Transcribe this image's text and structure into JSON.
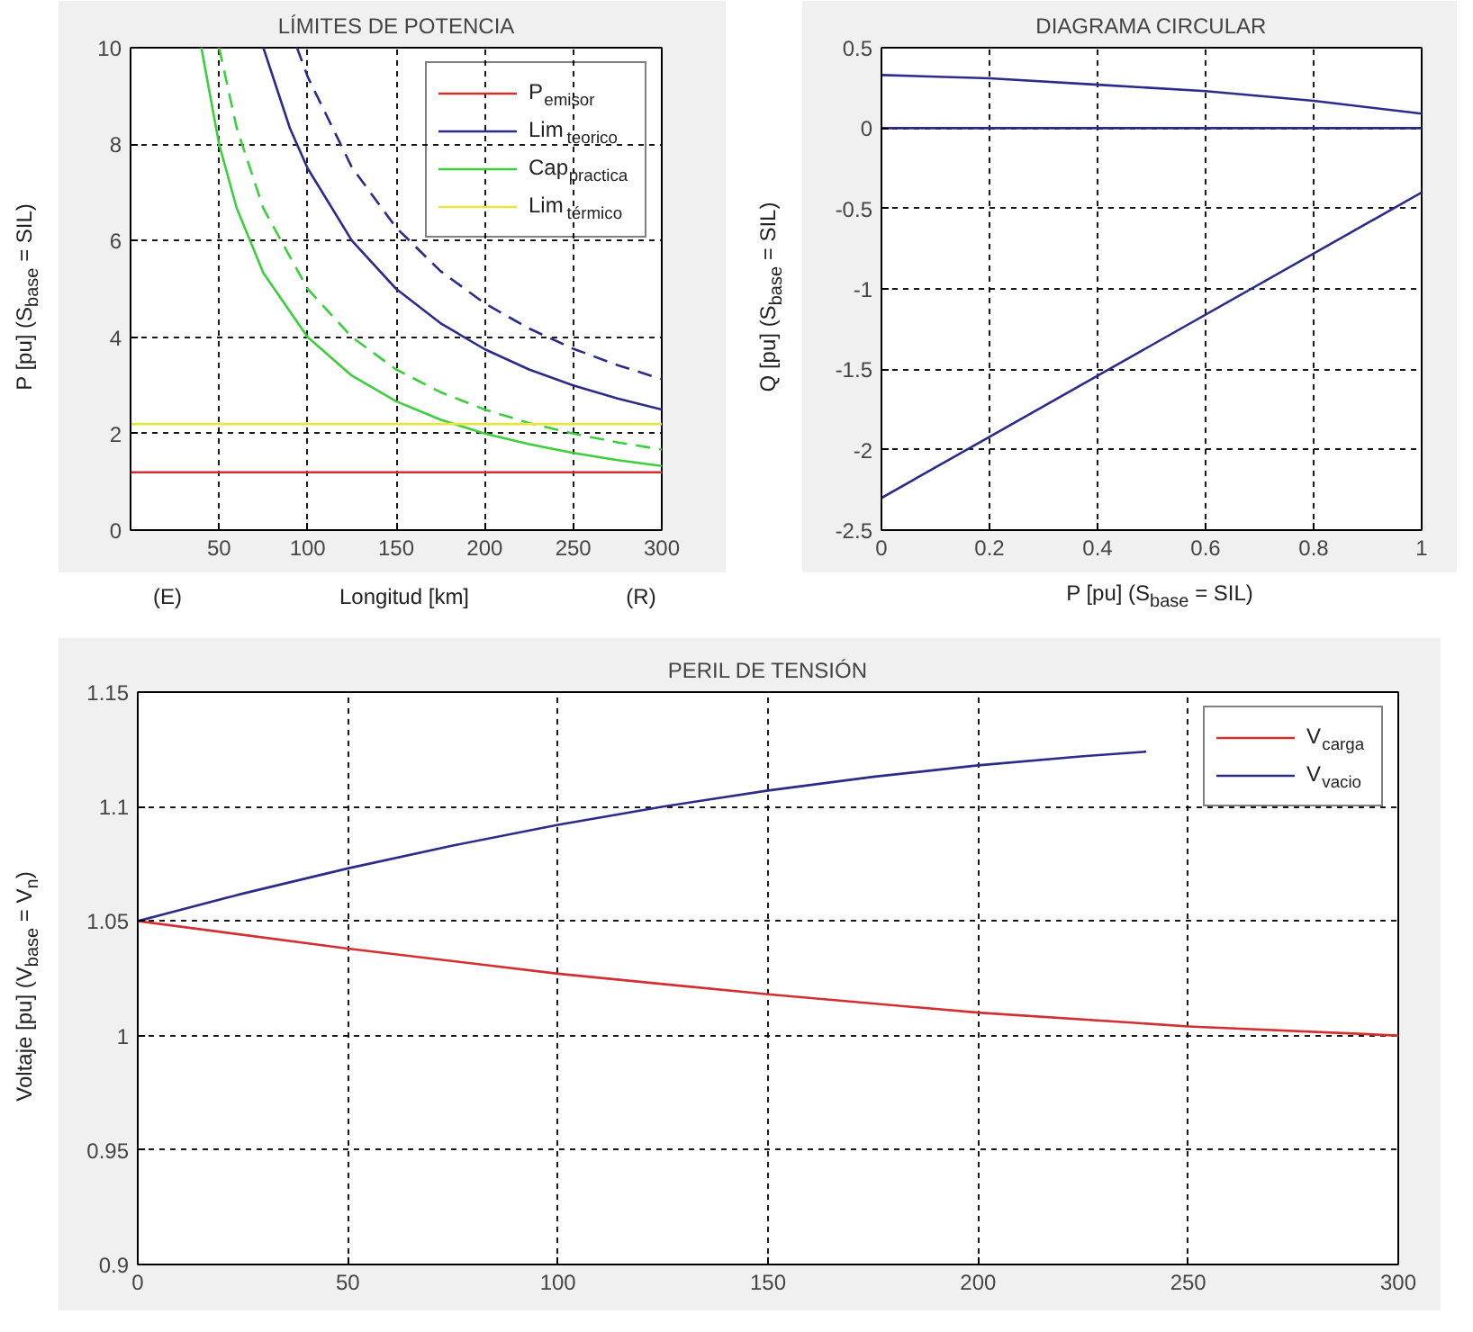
{
  "chart_data": [
    {
      "type": "line",
      "title": "LÍMITES DE POTENCIA",
      "xlabel": "Longitud [km]",
      "ylabel": "P [pu]   (S$_{base}$ = SIL)",
      "annotations": [
        "(E)",
        "(R)"
      ],
      "xlim": [
        0,
        300
      ],
      "xticks": [
        50,
        100,
        150,
        200,
        250,
        300
      ],
      "ylim": [
        0,
        10
      ],
      "yticks": [
        0,
        2,
        4,
        6,
        8,
        10
      ],
      "grid": true,
      "legend": "top right",
      "series": [
        {
          "name": "P$_{emisor}$",
          "color": "#d03030",
          "x": [
            0,
            300
          ],
          "values": [
            1.2,
            1.2
          ]
        },
        {
          "name": "Lim$_{teorico}$",
          "color": "#2b2b8a",
          "x": [
            75,
            90,
            100,
            125,
            150,
            175,
            200,
            225,
            250,
            275,
            300
          ],
          "values": [
            10,
            8.33,
            7.5,
            6.0,
            5.0,
            4.29,
            3.75,
            3.33,
            3.0,
            2.73,
            2.5
          ]
        },
        {
          "color": "#2b2b8a",
          "line_style": "dashed",
          "x": [
            94,
            100,
            125,
            150,
            175,
            200,
            225,
            250,
            275,
            300
          ],
          "values": [
            10,
            9.4,
            7.52,
            6.27,
            5.37,
            4.7,
            4.18,
            3.76,
            3.42,
            3.13
          ]
        },
        {
          "name": "Cap$_{practica}$",
          "color": "#3ccf3c",
          "x": [
            40,
            50,
            60,
            75,
            100,
            125,
            150,
            175,
            200,
            225,
            250,
            275,
            300
          ],
          "values": [
            10,
            8,
            6.67,
            5.33,
            4,
            3.2,
            2.67,
            2.29,
            2,
            1.78,
            1.6,
            1.45,
            1.33
          ]
        },
        {
          "color": "#3ccf3c",
          "line_style": "dashed",
          "x": [
            50,
            60,
            75,
            100,
            125,
            150,
            175,
            200,
            225,
            250,
            275,
            300
          ],
          "values": [
            10,
            8.33,
            6.67,
            5,
            4,
            3.33,
            2.86,
            2.5,
            2.22,
            2,
            1.82,
            1.67
          ]
        },
        {
          "name": "Lim$_{térmico}$",
          "color": "#e6e640",
          "x": [
            0,
            300
          ],
          "values": [
            2.2,
            2.2
          ]
        }
      ]
    },
    {
      "type": "line",
      "title": "DIAGRAMA CIRCULAR",
      "xlabel": "P [pu]   (S$_{base}$ = SIL)",
      "ylabel": "Q [pu]   (S$_{base}$ = SIL)",
      "xlim": [
        0,
        1
      ],
      "xticks": [
        0,
        0.2,
        0.4,
        0.6,
        0.8,
        1
      ],
      "ylim": [
        -2.5,
        0.5
      ],
      "yticks": [
        -2.5,
        -2,
        -1.5,
        -1,
        -0.5,
        0,
        0.5
      ],
      "grid": true,
      "series": [
        {
          "color": "#2b2b8a",
          "x": [
            0,
            0.2,
            0.4,
            0.6,
            0.8,
            1
          ],
          "values": [
            0.33,
            0.31,
            0.27,
            0.23,
            0.17,
            0.09
          ]
        },
        {
          "color": "#2b2b8a",
          "x": [
            0,
            1
          ],
          "values": [
            0,
            0
          ]
        },
        {
          "color": "#2b2b8a",
          "x": [
            0,
            1
          ],
          "values": [
            -2.3,
            -0.4
          ]
        }
      ]
    },
    {
      "type": "line",
      "title": "PERIL DE TENSIÓN",
      "ylabel": "Voltaje [pu]    (V$_{base}$ = V$_{n}$)",
      "xlim": [
        0,
        300
      ],
      "xticks": [
        0,
        50,
        100,
        150,
        200,
        250,
        300
      ],
      "ylim": [
        0.9,
        1.15
      ],
      "yticks": [
        0.9,
        0.95,
        1,
        1.05,
        1.1,
        1.15
      ],
      "grid": true,
      "legend": "top right",
      "series": [
        {
          "name": "V$_{carga}$",
          "color": "#d03030",
          "x": [
            0,
            50,
            100,
            150,
            200,
            250,
            300
          ],
          "values": [
            1.05,
            1.038,
            1.027,
            1.018,
            1.01,
            1.004,
            1.0
          ]
        },
        {
          "name": "V$_{vacio}$",
          "color": "#2b2b8a",
          "x": [
            0,
            25,
            50,
            75,
            100,
            125,
            150,
            175,
            200,
            225,
            240
          ],
          "values": [
            1.05,
            1.062,
            1.073,
            1.083,
            1.092,
            1.1,
            1.107,
            1.113,
            1.118,
            1.122,
            1.124
          ]
        }
      ]
    }
  ]
}
